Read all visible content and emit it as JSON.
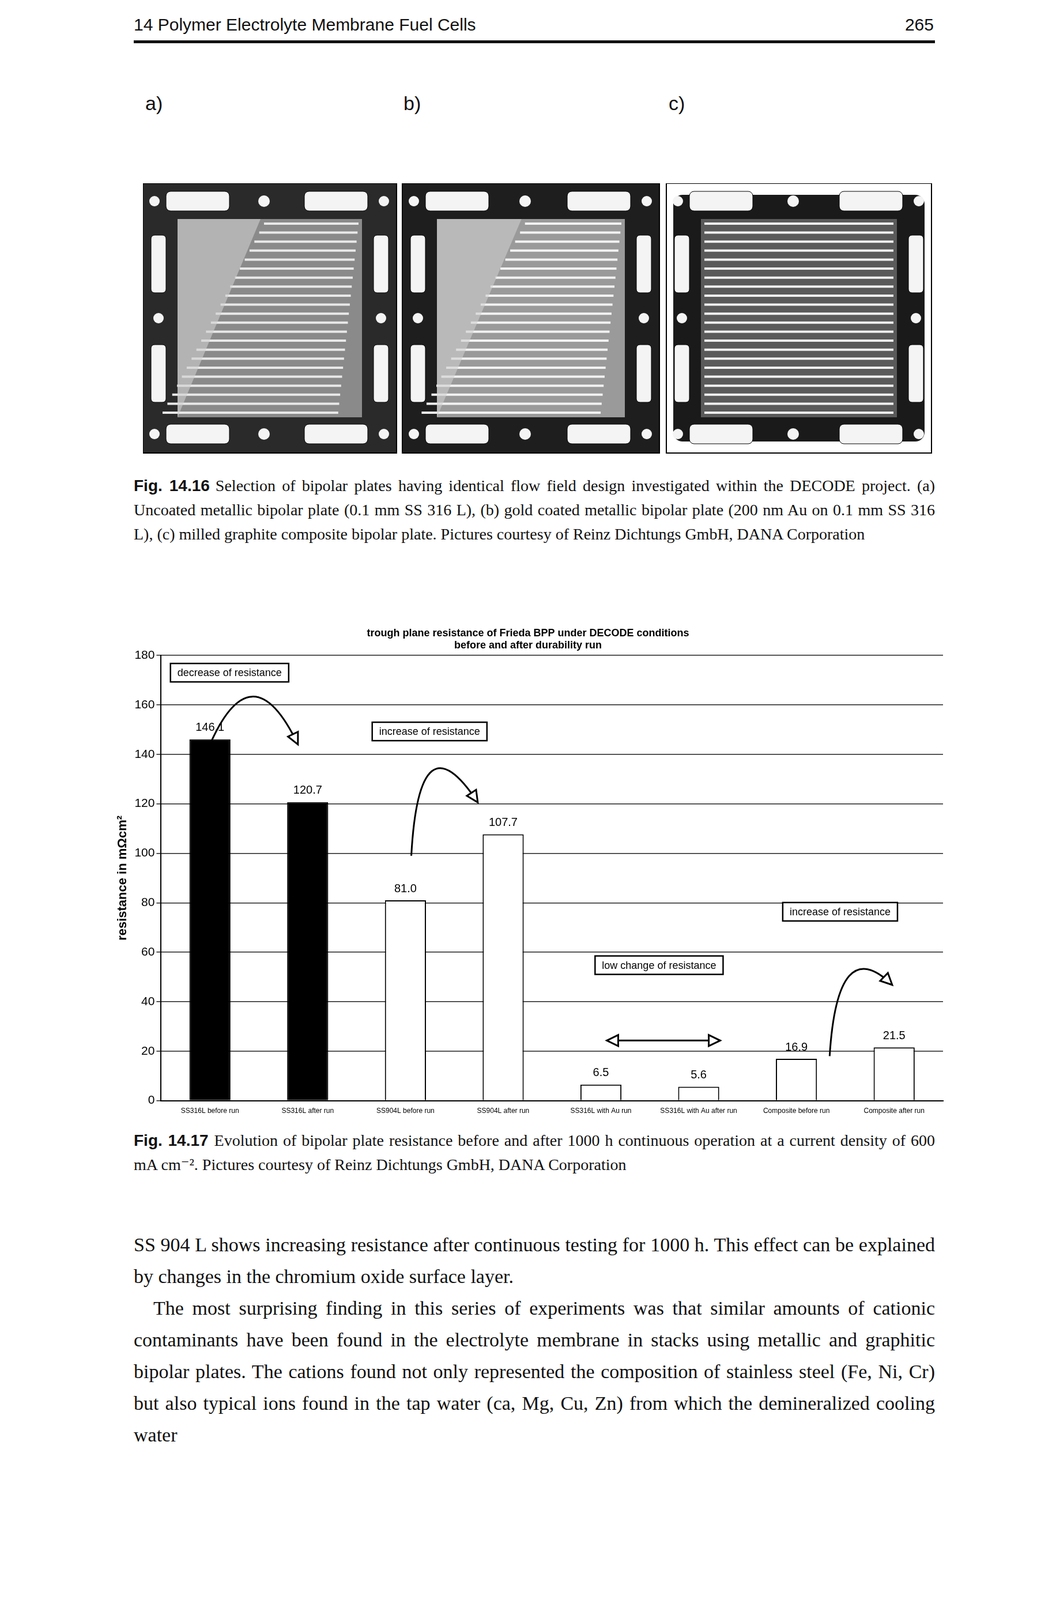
{
  "header": {
    "running_title": "14 Polymer Electrolyte Membrane Fuel Cells",
    "page_number": "265"
  },
  "figure_14_16": {
    "panel_labels": [
      "a)",
      "b)",
      "c)"
    ],
    "caption_label": "Fig. 14.16",
    "caption": "Selection of bipolar plates having identical flow field design investigated within the DECODE project. (a) Uncoated metallic bipolar plate (0.1 mm SS 316 L), (b) gold coated metallic bipolar plate (200 nm Au on 0.1 mm SS 316 L), (c) milled graphite composite bipolar plate. Pictures courtesy of Reinz Dichtungs GmbH, DANA Corporation"
  },
  "chart_data": {
    "type": "bar",
    "title": [
      "trough plane resistance of Frieda BPP under DECODE conditions",
      "before and after durability run"
    ],
    "y_label": "resistance in mΩcm²",
    "categories": [
      "SS316L before run",
      "SS316L after run",
      "SS904L before run",
      "SS904L after run",
      "SS316L with Au run",
      "SS316L with Au after run",
      "Composite before run",
      "Composite after run"
    ],
    "values": [
      146.1,
      120.7,
      81.0,
      107.7,
      6.5,
      5.6,
      16.9,
      21.5
    ],
    "value_labels": [
      "146.1",
      "120.7",
      "81.0",
      "107.7",
      "6.5",
      "5.6",
      "16.9",
      "21.5"
    ],
    "colors": [
      "#000000",
      "#000000",
      "#ffffff",
      "#ffffff",
      "#ffffff",
      "#ffffff",
      "#ffffff",
      "#ffffff"
    ],
    "ylim": [
      0,
      180
    ],
    "yticks": [
      0,
      20,
      40,
      60,
      80,
      100,
      120,
      140,
      160,
      180
    ],
    "grid": true,
    "data_labels": true,
    "annotations": [
      "decrease of resistance",
      "increase of resistance",
      "low change of resistance",
      "increase of resistance"
    ]
  },
  "figure_14_17": {
    "caption_label": "Fig. 14.17",
    "caption": "Evolution of bipolar plate resistance before and after 1000 h continuous operation at a current density of 600 mA cm⁻². Pictures courtesy of Reinz Dichtungs GmbH, DANA Corporation"
  },
  "body": [
    "SS 904 L shows increasing resistance after continuous testing for 1000 h. This effect can be explained by changes in the chromium oxide surface layer.",
    "The most surprising finding in this series of experiments was that similar amounts of cationic contaminants have been found in the electrolyte membrane in stacks using metallic and graphitic bipolar plates. The cations found not only represented the composition of stainless steel (Fe, Ni, Cr) but also typical ions found in the tap water (ca, Mg, Cu, Zn) from which the demineralized cooling water"
  ]
}
